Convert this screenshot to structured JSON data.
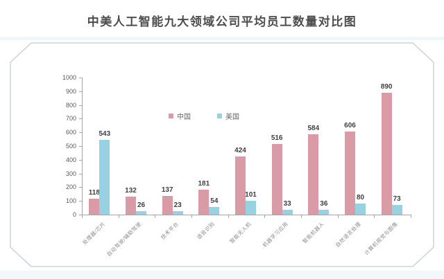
{
  "page": {
    "title": "中美人工智能九大领域公司平均员工数量对比图"
  },
  "colors": {
    "china_bar": "#d99ca7",
    "us_bar": "#96d2e2",
    "axis": "#a6a6a6",
    "value_label": "#404040",
    "tick_label": "#595959",
    "category_label": "#8c8c8c",
    "panel_border": "#ccd3d8",
    "title_text": "#4d4d4d"
  },
  "chart_data": {
    "type": "bar",
    "title": "中美人工智能九大领域公司平均员工数量对比图",
    "categories": [
      "处理器/芯片",
      "自动驾驶/辅助驾驶",
      "技术平台",
      "语音识别",
      "智能无人机",
      "机器学习应用",
      "智能机器人",
      "自然语言处理",
      "计算机视觉与图像"
    ],
    "series": [
      {
        "name": "中国",
        "color": "#d99ca7",
        "values": [
          118,
          132,
          137,
          181,
          424,
          516,
          584,
          606,
          890
        ]
      },
      {
        "name": "美国",
        "color": "#96d2e2",
        "values": [
          543,
          26,
          23,
          54,
          101,
          33,
          36,
          80,
          73
        ]
      }
    ],
    "xlabel": "",
    "ylabel": "",
    "ylim": [
      0,
      1000
    ],
    "ytick_step": 100,
    "yticks": [
      0,
      100,
      200,
      300,
      400,
      500,
      600,
      700,
      800,
      900,
      1000
    ],
    "grid": false,
    "value_labels": true,
    "legend_position": "inside-top-center"
  }
}
